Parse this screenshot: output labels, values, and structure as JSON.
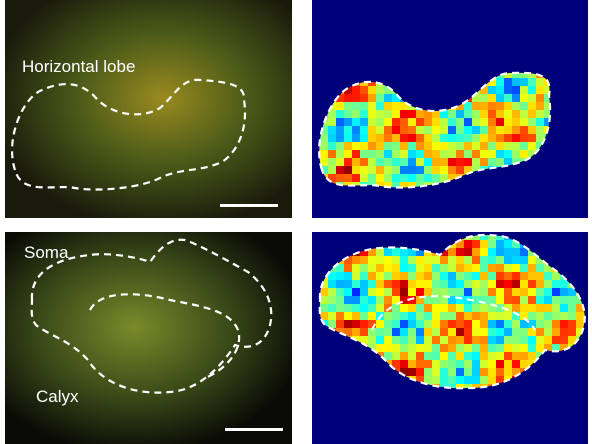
{
  "top_left": {
    "label": "Horizontal lobe"
  },
  "bottom_left": {
    "labels": [
      "Soma",
      "Calyx"
    ]
  }
}
